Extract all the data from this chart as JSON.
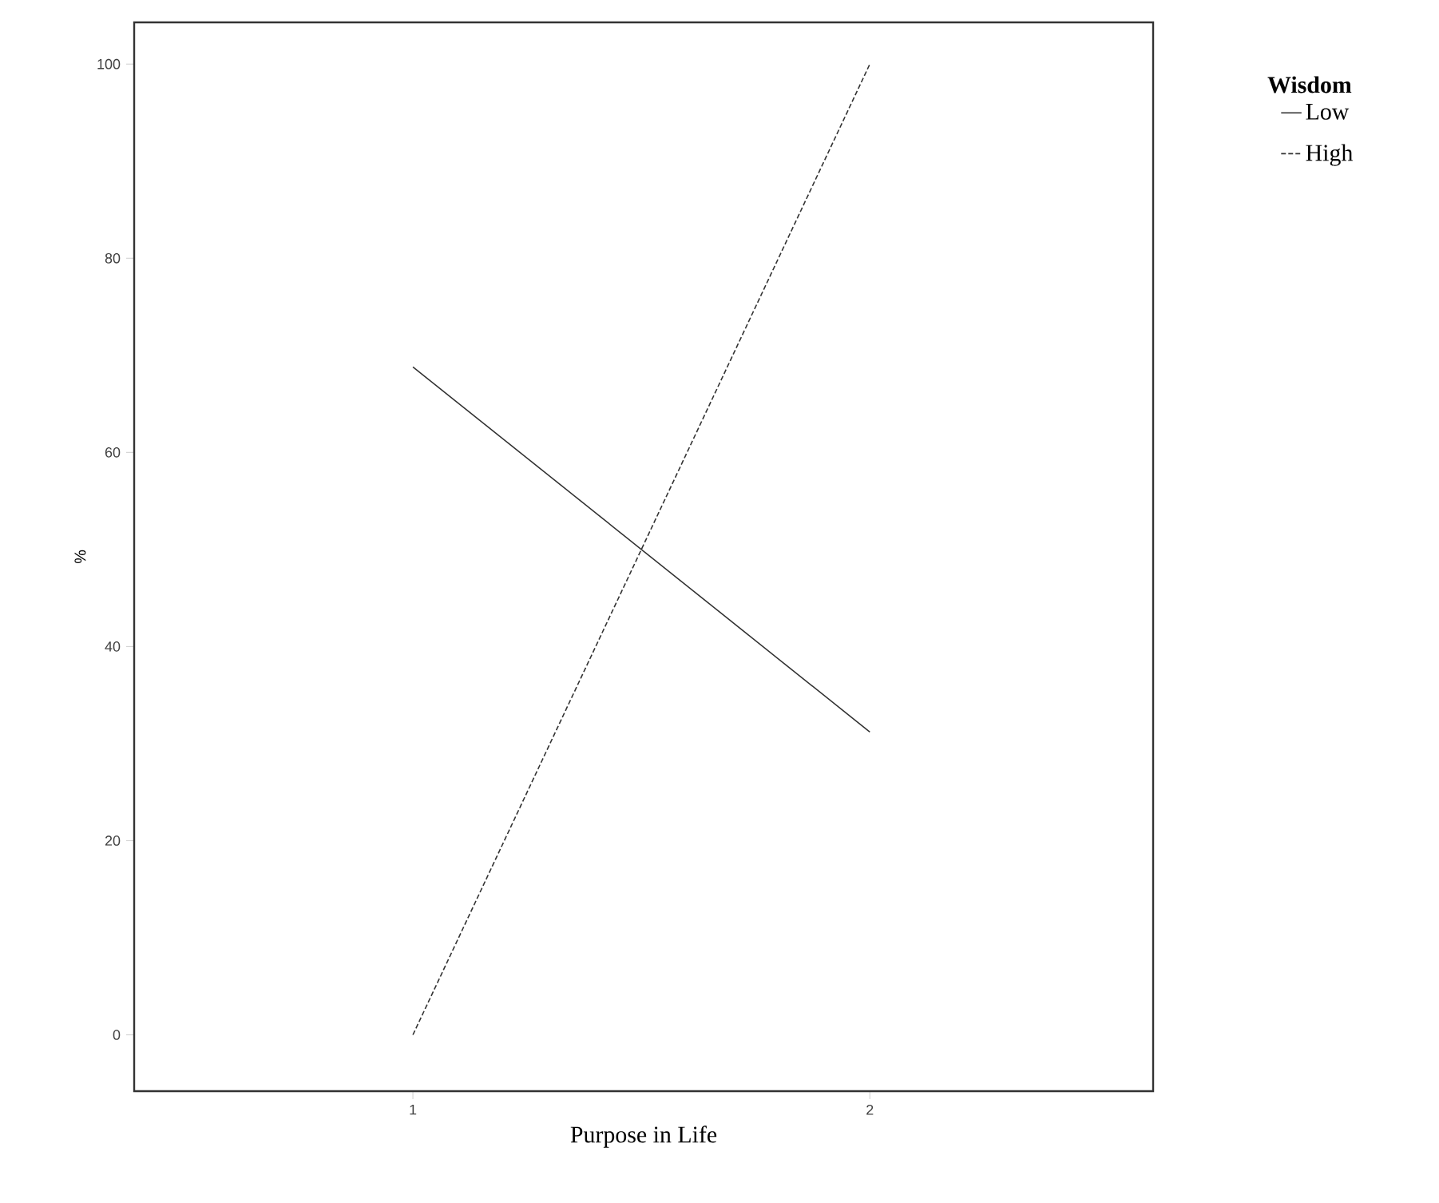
{
  "chart_data": {
    "type": "line",
    "xlabel": "Purpose in Life",
    "ylabel": "%",
    "legend_title": "Wisdom",
    "legend": "top right",
    "x": [
      1,
      2
    ],
    "xlim": [
      0.39,
      2.62
    ],
    "xticks": [
      1,
      2
    ],
    "ylim": [
      -5.8,
      104.3
    ],
    "yticks": [
      0,
      20,
      40,
      60,
      80,
      100
    ],
    "grid": false,
    "marker": "none",
    "series": [
      {
        "name": "Low",
        "color": "#333333",
        "line_style": "solid",
        "values": [
          68.8,
          31.2
        ]
      },
      {
        "name": "High",
        "color": "#333333",
        "line_style": "dashed",
        "values": [
          0,
          100
        ]
      }
    ]
  }
}
